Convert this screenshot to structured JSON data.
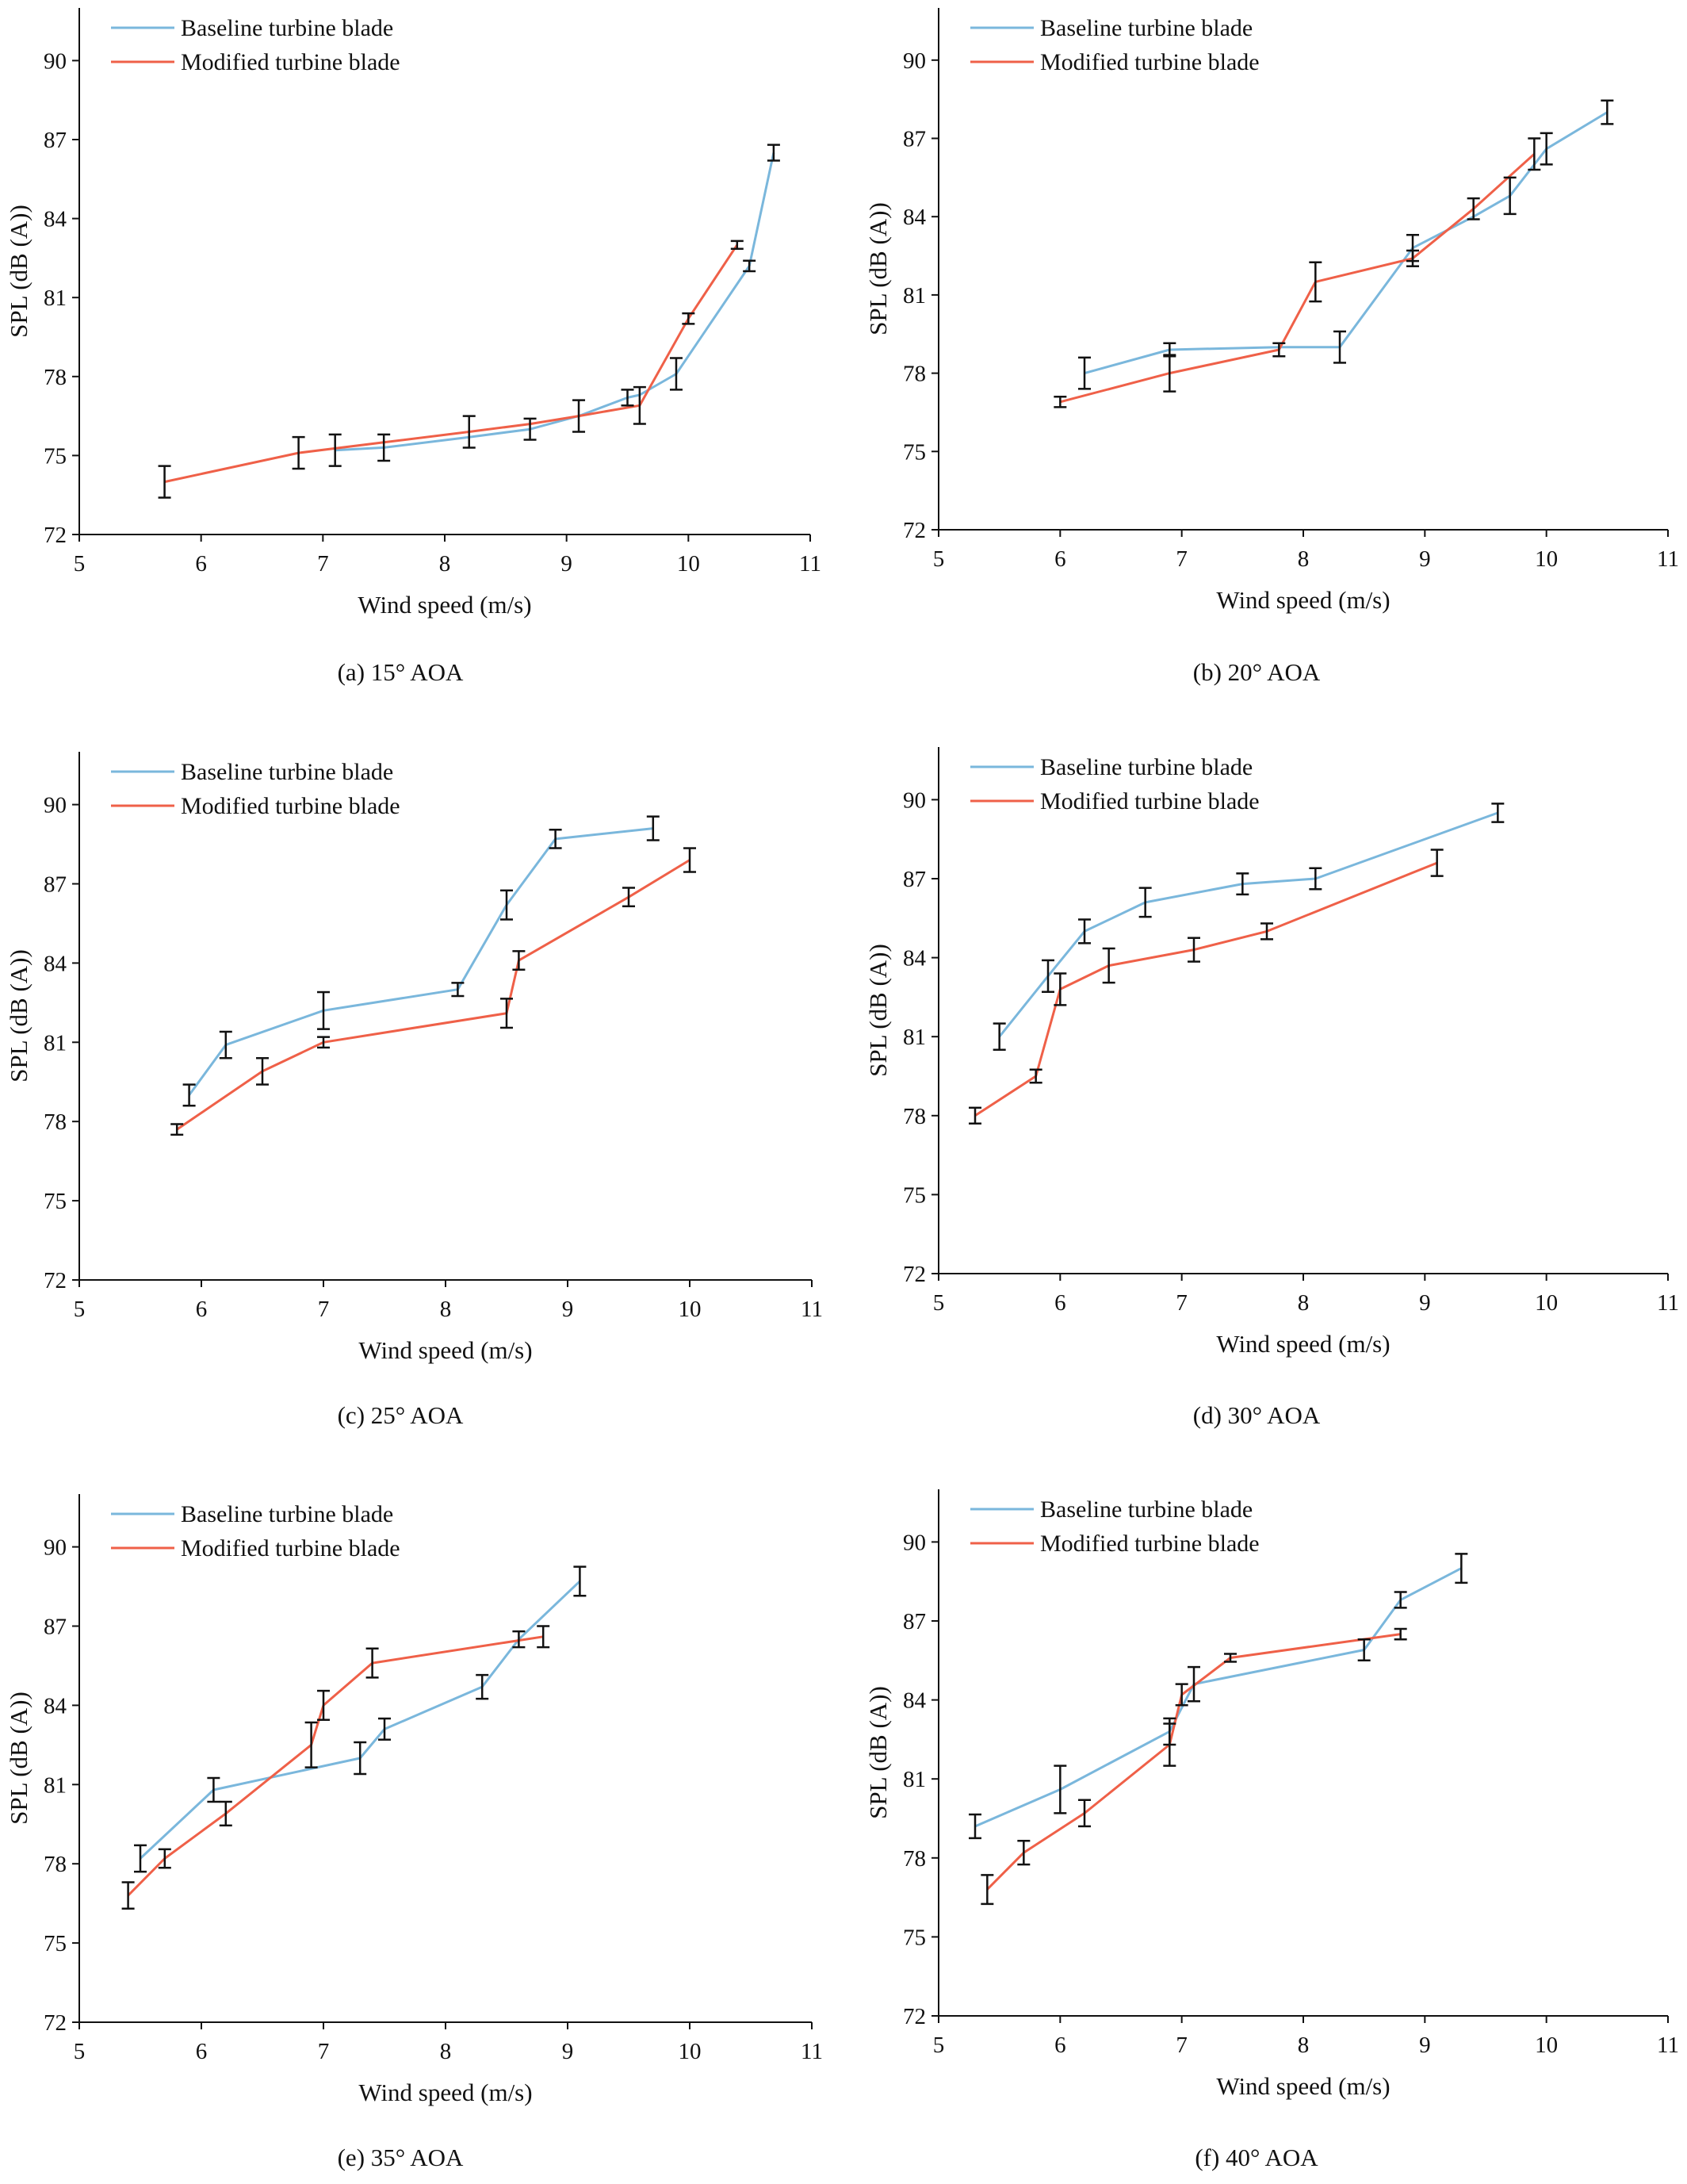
{
  "legend": {
    "baseline": "Baseline turbine blade",
    "modified": "Modified turbine blade"
  },
  "colors": {
    "baseline": "#7ab7dc",
    "modified": "#ef6048",
    "axis": "#111111",
    "errorbar": "#111111"
  },
  "chart_data": [
    {
      "type": "line",
      "caption": "(a) 15° AOA",
      "xlabel": "Wind speed (m/s)",
      "ylabel": "SPL (dB (A))",
      "xlim": [
        5,
        11
      ],
      "ylim": [
        72,
        92
      ],
      "xticks": [
        5,
        6,
        7,
        8,
        9,
        10,
        11
      ],
      "yticks": [
        72,
        75,
        78,
        81,
        84,
        87,
        90
      ],
      "legend_position": "top-left",
      "series": [
        {
          "name": "Baseline turbine blade",
          "color": "#7ab7dc",
          "x": [
            7.1,
            7.5,
            8.2,
            8.7,
            9.1,
            9.5,
            9.6,
            9.9,
            10.5,
            10.7
          ],
          "y": [
            75.2,
            75.3,
            75.7,
            76.0,
            76.5,
            77.2,
            77.3,
            78.1,
            82.2,
            86.5
          ],
          "err": [
            0.6,
            0.5,
            0,
            0.4,
            0,
            0.3,
            0,
            0.6,
            0.2,
            0.3
          ]
        },
        {
          "name": "Modified turbine blade",
          "color": "#ef6048",
          "x": [
            5.7,
            6.8,
            7.5,
            8.2,
            8.7,
            9.1,
            9.6,
            10.0,
            10.4
          ],
          "y": [
            74.0,
            75.1,
            75.5,
            75.9,
            76.2,
            76.5,
            76.9,
            80.2,
            83.0
          ],
          "err": [
            0.6,
            0.6,
            0,
            0.6,
            0,
            0.6,
            0.7,
            0.2,
            0.15
          ]
        }
      ]
    },
    {
      "type": "line",
      "caption": "(b) 20° AOA",
      "xlabel": "Wind speed (m/s)",
      "ylabel": "SPL (dB (A))",
      "xlim": [
        5,
        11
      ],
      "ylim": [
        72,
        92
      ],
      "xticks": [
        5,
        6,
        7,
        8,
        9,
        10,
        11
      ],
      "yticks": [
        72,
        75,
        78,
        81,
        84,
        87,
        90
      ],
      "legend_position": "top-left",
      "series": [
        {
          "name": "Baseline turbine blade",
          "color": "#7ab7dc",
          "x": [
            6.2,
            6.9,
            7.8,
            8.3,
            8.9,
            9.4,
            9.7,
            10.0,
            10.5
          ],
          "y": [
            78.0,
            78.9,
            79.0,
            79.0,
            82.8,
            84.0,
            84.8,
            86.6,
            88.0
          ],
          "err": [
            0.6,
            0.25,
            0,
            0.6,
            0.5,
            0,
            0.7,
            0.6,
            0.45
          ]
        },
        {
          "name": "Modified turbine blade",
          "color": "#ef6048",
          "x": [
            6.0,
            6.9,
            7.8,
            8.1,
            8.9,
            9.4,
            9.9
          ],
          "y": [
            76.9,
            78.0,
            78.9,
            81.5,
            82.4,
            84.3,
            86.4
          ],
          "err": [
            0.2,
            0.7,
            0.25,
            0.75,
            0.3,
            0.4,
            0.6
          ]
        }
      ]
    },
    {
      "type": "line",
      "caption": "(c) 25° AOA",
      "xlabel": "Wind speed (m/s)",
      "ylabel": "SPL (dB (A))",
      "xlim": [
        5,
        11
      ],
      "ylim": [
        72,
        92
      ],
      "xticks": [
        5,
        6,
        7,
        8,
        9,
        10,
        11
      ],
      "yticks": [
        72,
        75,
        78,
        81,
        84,
        87,
        90
      ],
      "legend_position": "top-left",
      "series": [
        {
          "name": "Baseline turbine blade",
          "color": "#7ab7dc",
          "x": [
            5.9,
            6.2,
            7.0,
            8.1,
            8.5,
            8.9,
            9.7
          ],
          "y": [
            79.0,
            80.9,
            82.2,
            83.0,
            86.2,
            88.7,
            89.1
          ],
          "err": [
            0.4,
            0.5,
            0.7,
            0.25,
            0.55,
            0.35,
            0.45
          ]
        },
        {
          "name": "Modified turbine blade",
          "color": "#ef6048",
          "x": [
            5.8,
            6.5,
            7.0,
            8.5,
            8.6,
            9.5,
            10.0
          ],
          "y": [
            77.7,
            79.9,
            81.0,
            82.1,
            84.1,
            86.5,
            87.9
          ],
          "err": [
            0.2,
            0.5,
            0.2,
            0.55,
            0.35,
            0.35,
            0.45
          ]
        }
      ]
    },
    {
      "type": "line",
      "caption": "(d) 30° AOA",
      "xlabel": "Wind speed (m/s)",
      "ylabel": "SPL (dB (A))",
      "xlim": [
        5,
        11
      ],
      "ylim": [
        72,
        92
      ],
      "xticks": [
        5,
        6,
        7,
        8,
        9,
        10,
        11
      ],
      "yticks": [
        72,
        75,
        78,
        81,
        84,
        87,
        90
      ],
      "legend_position": "top-left",
      "series": [
        {
          "name": "Baseline turbine blade",
          "color": "#7ab7dc",
          "x": [
            5.5,
            5.9,
            6.2,
            6.7,
            7.5,
            8.1,
            9.6
          ],
          "y": [
            81.0,
            83.3,
            85.0,
            86.1,
            86.8,
            87.0,
            89.5
          ],
          "err": [
            0.5,
            0.6,
            0.45,
            0.55,
            0.4,
            0.4,
            0.35
          ]
        },
        {
          "name": "Modified turbine blade",
          "color": "#ef6048",
          "x": [
            5.3,
            5.8,
            6.0,
            6.4,
            7.1,
            7.7,
            9.1
          ],
          "y": [
            78.0,
            79.5,
            82.8,
            83.7,
            84.3,
            85.0,
            87.6
          ],
          "err": [
            0.3,
            0.25,
            0.6,
            0.65,
            0.45,
            0.3,
            0.5
          ]
        }
      ]
    },
    {
      "type": "line",
      "caption": "(e) 35° AOA",
      "xlabel": "Wind speed (m/s)",
      "ylabel": "SPL (dB (A))",
      "xlim": [
        5,
        11
      ],
      "ylim": [
        72,
        92
      ],
      "xticks": [
        5,
        6,
        7,
        8,
        9,
        10,
        11
      ],
      "yticks": [
        72,
        75,
        78,
        81,
        84,
        87,
        90
      ],
      "legend_position": "top-left",
      "series": [
        {
          "name": "Baseline turbine blade",
          "color": "#7ab7dc",
          "x": [
            5.5,
            6.1,
            7.3,
            7.5,
            8.3,
            8.6,
            9.1
          ],
          "y": [
            78.2,
            80.8,
            82.0,
            83.1,
            84.7,
            86.5,
            88.7
          ],
          "err": [
            0.5,
            0.45,
            0.6,
            0.4,
            0.45,
            0.3,
            0.55
          ]
        },
        {
          "name": "Modified turbine blade",
          "color": "#ef6048",
          "x": [
            5.4,
            5.7,
            6.2,
            6.9,
            7.0,
            7.4,
            8.8
          ],
          "y": [
            76.8,
            78.2,
            79.9,
            82.5,
            84.0,
            85.6,
            86.6
          ],
          "err": [
            0.5,
            0.35,
            0.45,
            0.85,
            0.55,
            0.55,
            0.4
          ]
        }
      ]
    },
    {
      "type": "line",
      "caption": "(f) 40° AOA",
      "xlabel": "Wind speed (m/s)",
      "ylabel": "SPL (dB (A))",
      "xlim": [
        5,
        11
      ],
      "ylim": [
        72,
        92
      ],
      "xticks": [
        5,
        6,
        7,
        8,
        9,
        10,
        11
      ],
      "yticks": [
        72,
        75,
        78,
        81,
        84,
        87,
        90
      ],
      "legend_position": "top-left",
      "series": [
        {
          "name": "Baseline turbine blade",
          "color": "#7ab7dc",
          "x": [
            5.3,
            6.0,
            6.9,
            7.1,
            8.5,
            8.8,
            9.3
          ],
          "y": [
            79.2,
            80.6,
            82.8,
            84.6,
            85.9,
            87.8,
            89.0
          ],
          "err": [
            0.45,
            0.9,
            0.5,
            0.65,
            0.4,
            0.3,
            0.55
          ]
        },
        {
          "name": "Modified turbine blade",
          "color": "#ef6048",
          "x": [
            5.4,
            5.7,
            6.2,
            6.9,
            7.0,
            7.4,
            8.8
          ],
          "y": [
            76.8,
            78.2,
            79.7,
            82.3,
            84.2,
            85.6,
            86.5
          ],
          "err": [
            0.55,
            0.45,
            0.5,
            0.8,
            0.4,
            0.15,
            0.2
          ]
        }
      ]
    }
  ]
}
